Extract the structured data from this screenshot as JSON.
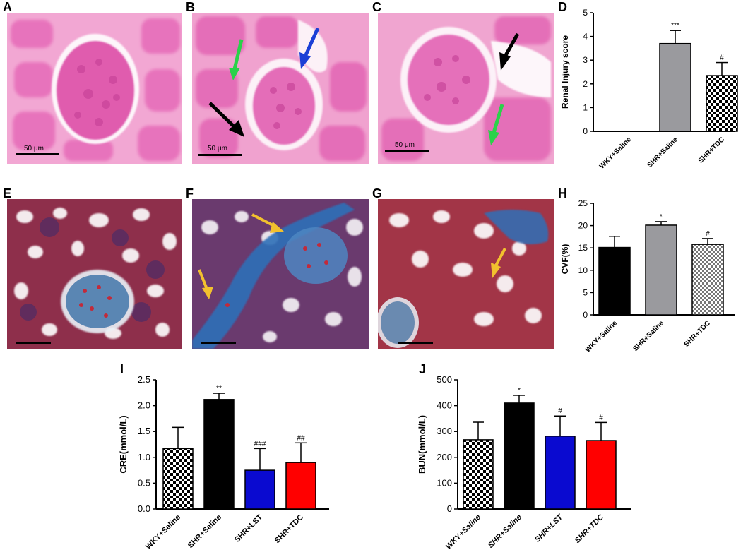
{
  "panels": {
    "A": "A",
    "B": "B",
    "C": "C",
    "D": "D",
    "E": "E",
    "F": "F",
    "G": "G",
    "H": "H",
    "I": "I",
    "J": "J"
  },
  "scale_bars": {
    "A": "50 μm",
    "B": "50 μm",
    "C": "50 μm"
  },
  "stain_colors": {
    "he_background": "#f2a7d3",
    "he_tissue": "#e16ab5",
    "masson_background": "#8e2f4b",
    "masson_collagen": "#2f6fb8"
  },
  "arrow_colors": {
    "black": "#000000",
    "green": "#2bd14a",
    "blue": "#1b3fd6",
    "yellow": "#f2c12e"
  },
  "chart_data": [
    {
      "id": "D",
      "type": "bar",
      "categories": [
        "WKY+Saline",
        "SHR+Saline",
        "SHR+TDC"
      ],
      "values": [
        0,
        3.7,
        2.35
      ],
      "errors": [
        0,
        0.55,
        0.55
      ],
      "annotations": [
        "",
        "***",
        "#"
      ],
      "fills": [
        "#000000",
        "#9a9a9e",
        "pattern-check"
      ],
      "ylabel": "Renal Injury score",
      "ylim": [
        0,
        5
      ],
      "yticks": [
        0,
        1,
        2,
        3,
        4,
        5
      ]
    },
    {
      "id": "H",
      "type": "bar",
      "categories": [
        "WKY+Saline",
        "SHR+Saline",
        "SHR+TDC"
      ],
      "values": [
        15.1,
        20.1,
        15.8
      ],
      "errors": [
        2.5,
        0.8,
        1.3
      ],
      "annotations": [
        "",
        "*",
        "#"
      ],
      "fills": [
        "#000000",
        "#9a9a9e",
        "pattern-check-fine"
      ],
      "ylabel": "CVF(%)",
      "ylim": [
        0,
        25
      ],
      "yticks": [
        0,
        5,
        10,
        15,
        20,
        25
      ]
    },
    {
      "id": "I",
      "type": "bar",
      "categories": [
        "WKY+Saline",
        "SHR+Saline",
        "SHR+LST",
        "SHR+TDC"
      ],
      "values": [
        1.17,
        2.12,
        0.75,
        0.9
      ],
      "errors": [
        0.41,
        0.12,
        0.42,
        0.38
      ],
      "annotations": [
        "",
        "**",
        "###",
        "##"
      ],
      "fills": [
        "pattern-check",
        "#000000",
        "#0a0ad0",
        "#ff0000"
      ],
      "ylabel": "CRE(mmol/L)",
      "ylim": [
        0,
        2.5
      ],
      "yticks": [
        "0.0",
        "0.5",
        "1.0",
        "1.5",
        "2.0",
        "2.5"
      ]
    },
    {
      "id": "J",
      "type": "bar",
      "categories": [
        "WKY+Saline",
        "SHR+Saline",
        "SHR+LST",
        "SHR+TDC"
      ],
      "values": [
        268,
        410,
        282,
        265
      ],
      "errors": [
        68,
        30,
        78,
        70
      ],
      "annotations": [
        "",
        "*",
        "#",
        "#"
      ],
      "fills": [
        "pattern-check",
        "#000000",
        "#0a0ad0",
        "#ff0000"
      ],
      "ylabel": "BUN(mmol/L)",
      "ylim": [
        0,
        500
      ],
      "yticks": [
        0,
        100,
        200,
        300,
        400,
        500
      ]
    }
  ]
}
